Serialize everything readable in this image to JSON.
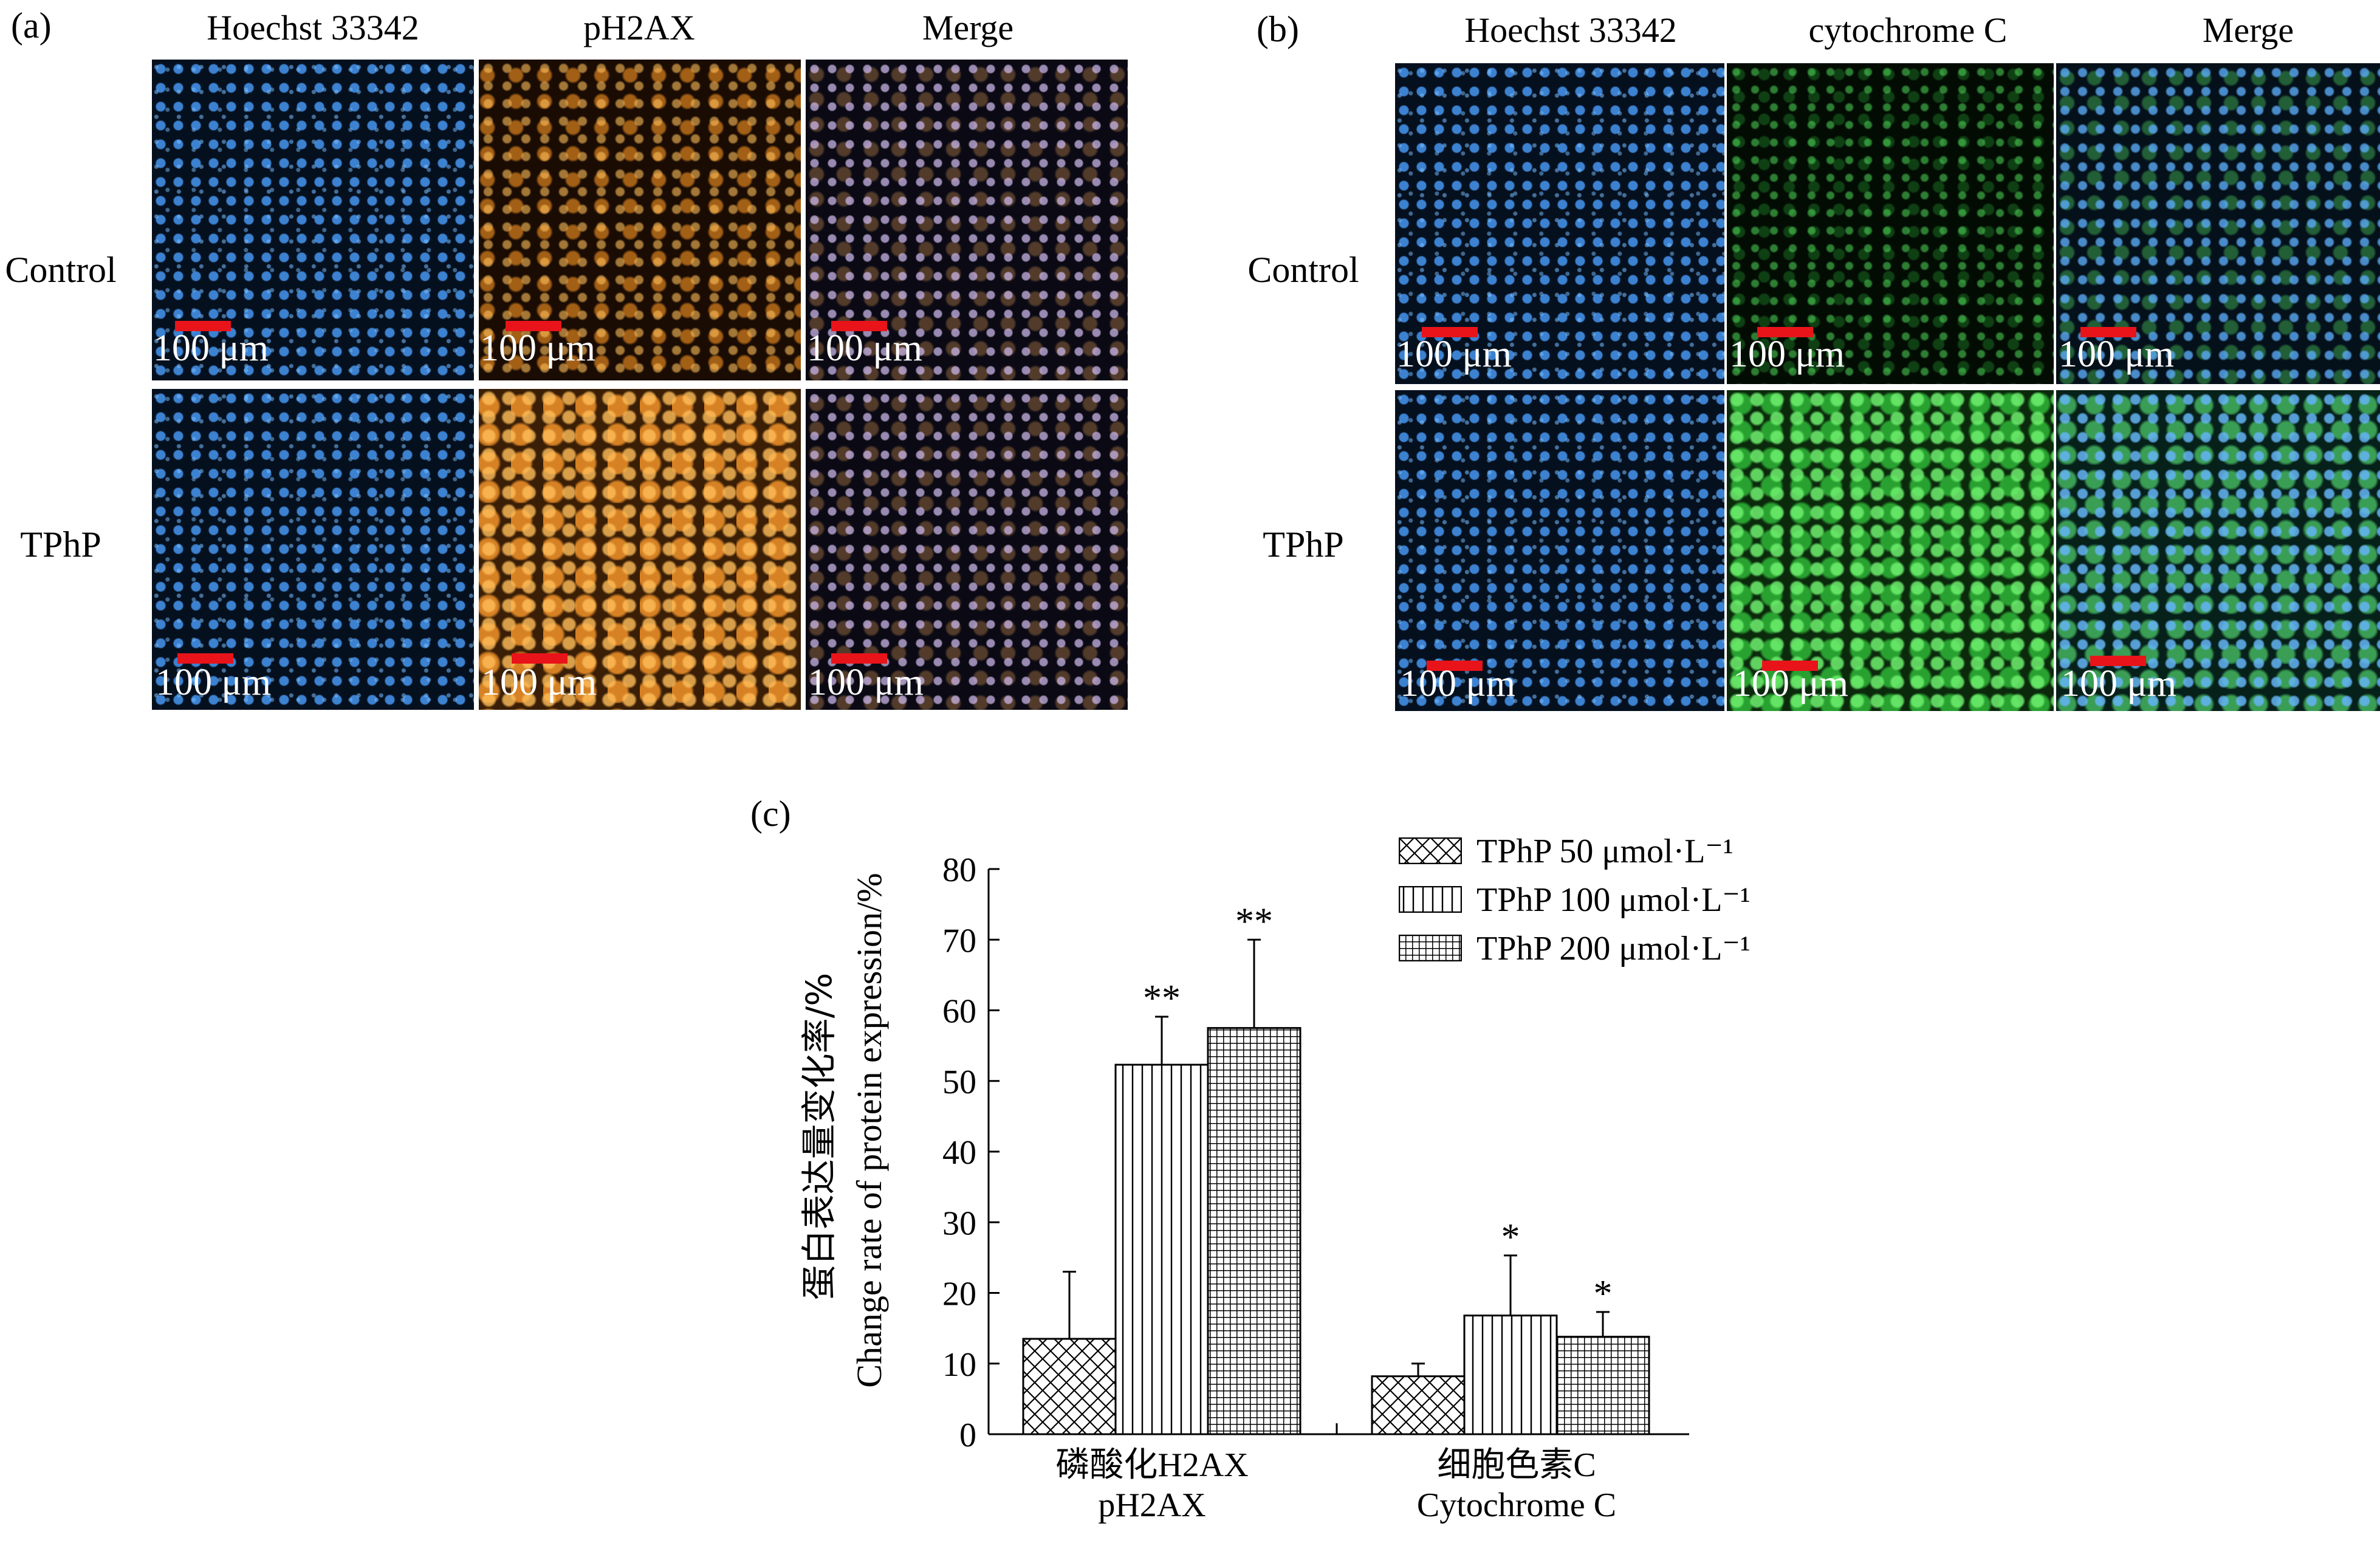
{
  "panel_a": {
    "letter": "(a)",
    "columns": [
      "Hoechst 33342",
      "pH2AX",
      "Merge"
    ],
    "rows": [
      "Control",
      "TPhP"
    ],
    "scale_bar_label": "100 μm"
  },
  "panel_b": {
    "letter": "(b)",
    "columns": [
      "Hoechst 33342",
      "cytochrome C",
      "Merge"
    ],
    "rows": [
      "Control",
      "TPhP"
    ],
    "scale_bar_label": "100 μm"
  },
  "panel_c": {
    "letter": "(c)",
    "ylabel_zh": "蛋白表达量变化率/%",
    "ylabel_en": "Change rate of protein expression/%",
    "legend": [
      {
        "label": "TPhP 50 μmol·L⁻¹",
        "pattern": "crosshatch"
      },
      {
        "label": "TPhP 100 μmol·L⁻¹",
        "pattern": "vertical"
      },
      {
        "label": "TPhP 200 μmol·L⁻¹",
        "pattern": "grid"
      }
    ],
    "categories": [
      {
        "zh": "磷酸化H2AX",
        "en": "pH2AX"
      },
      {
        "zh": "细胞色素C",
        "en": "Cytochrome C"
      }
    ]
  },
  "chart_data": {
    "type": "bar",
    "title": "",
    "xlabel": "",
    "ylabel": "蛋白表达量变化率/% Change rate of protein expression/%",
    "categories": [
      "磷酸化H2AX pH2AX",
      "细胞色素C Cytochrome C"
    ],
    "ylim": [
      0,
      80
    ],
    "yticks": [
      0,
      10,
      20,
      30,
      40,
      50,
      60,
      70,
      80
    ],
    "grid": false,
    "legend_position": "top-right",
    "series": [
      {
        "name": "TPhP 50 μmol·L⁻¹",
        "values": [
          13.5,
          8.2
        ],
        "error": [
          9.5,
          1.8
        ],
        "significance": [
          "",
          ""
        ]
      },
      {
        "name": "TPhP 100 μmol·L⁻¹",
        "values": [
          52.3,
          16.8
        ],
        "error": [
          6.8,
          8.5
        ],
        "significance": [
          "**",
          "*"
        ]
      },
      {
        "name": "TPhP 200 μmol·L⁻¹",
        "values": [
          57.5,
          13.8
        ],
        "error": [
          12.5,
          3.5
        ],
        "significance": [
          "**",
          "*"
        ]
      }
    ]
  }
}
